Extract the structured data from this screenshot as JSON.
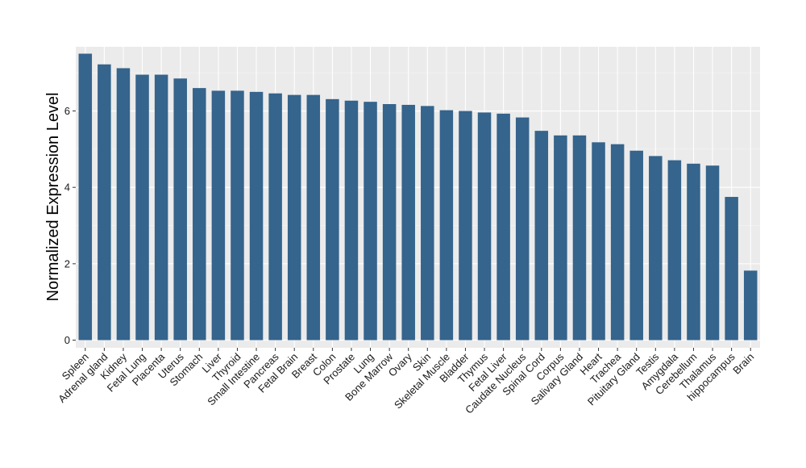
{
  "chart_data": {
    "type": "bar",
    "title": "",
    "xlabel": "",
    "ylabel": "Normalized Expression Level",
    "ylim": [
      -0.2,
      7.68
    ],
    "yticks": [
      0,
      2,
      4,
      6
    ],
    "grid": true,
    "legend": "none",
    "colors": {
      "bar": "#35648c",
      "panel": "#ebebeb",
      "grid_major": "#ffffff",
      "tick": "#333333"
    },
    "categories": [
      "Spleen",
      "Adrenal gland",
      "Kidney",
      "Fetal Lung",
      "Placenta",
      "Uterus",
      "Stomach",
      "Liver",
      "Thyroid",
      "Small Intestine",
      "Pancreas",
      "Fetal Brain",
      "Breast",
      "Colon",
      "Prostate",
      "Lung",
      "Bone Marrow",
      "Ovary",
      "Skin",
      "Skeletal Muscle",
      "Bladder",
      "Thymus",
      "Fetal Liver",
      "Caudate Nucleus",
      "Spinal Cord",
      "Corpus",
      "Salivary Gland",
      "Heart",
      "Trachea",
      "Pituitary Gland",
      "Testis",
      "Amygdala",
      "Cerebellum",
      "Thalamus",
      "hippocampus",
      "Brain"
    ],
    "values": [
      7.5,
      7.22,
      7.12,
      6.95,
      6.95,
      6.85,
      6.6,
      6.53,
      6.53,
      6.5,
      6.46,
      6.42,
      6.42,
      6.31,
      6.27,
      6.24,
      6.18,
      6.16,
      6.13,
      6.02,
      6.0,
      5.96,
      5.93,
      5.83,
      5.48,
      5.36,
      5.36,
      5.18,
      5.13,
      4.96,
      4.82,
      4.71,
      4.62,
      4.57,
      3.75,
      1.82
    ]
  }
}
